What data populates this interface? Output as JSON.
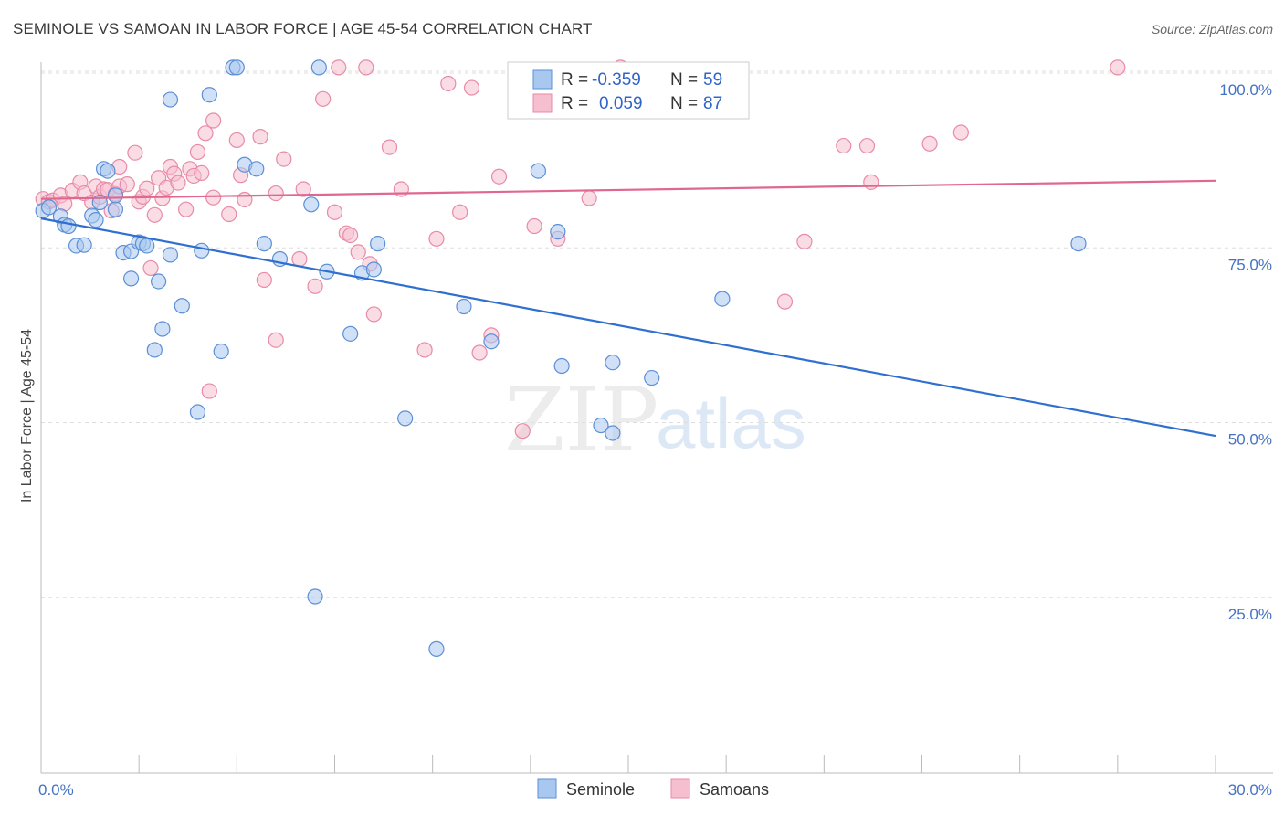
{
  "header": {
    "title": "SEMINOLE VS SAMOAN IN LABOR FORCE | AGE 45-54 CORRELATION CHART",
    "source": "Source: ZipAtlas.com"
  },
  "watermark": {
    "zip": "ZIP",
    "atlas": "atlas"
  },
  "legend": {
    "r_label": "R =",
    "n_label": "N =",
    "rows": [
      {
        "series": "Seminole",
        "r": "-0.359",
        "n": "59"
      },
      {
        "series": "Samoans",
        "r": "0.059",
        "n": "87"
      }
    ]
  },
  "colors": {
    "seminole_fill": "#a9c8f0",
    "seminole_stroke": "#5b8fd6",
    "seminole_line": "#2f6fcf",
    "samoans_fill": "#f6bfd0",
    "samoans_stroke": "#e88aa8",
    "samoans_line": "#e0678f",
    "grid": "#dddddd",
    "tick_text": "#4472c4"
  },
  "chart_data": {
    "type": "scatter",
    "title": "SEMINOLE VS SAMOAN IN LABOR FORCE | AGE 45-54 CORRELATION CHART",
    "ylabel": "In Labor Force | Age 45-54",
    "xlim": [
      0,
      30
    ],
    "ylim": [
      0,
      102
    ],
    "x_tick_labels": [
      {
        "value": 0,
        "label": "0.0%"
      },
      {
        "value": 30,
        "label": "30.0%"
      }
    ],
    "y_tick_labels": [
      {
        "value": 100,
        "label": "100.0%"
      },
      {
        "value": 75,
        "label": "75.0%"
      },
      {
        "value": 50,
        "label": "50.0%"
      },
      {
        "value": 25,
        "label": "25.0%"
      }
    ],
    "grid": true,
    "legend_position": "top-center",
    "series": [
      {
        "name": "Seminole",
        "r": -0.359,
        "n": 59,
        "trend": [
          [
            0,
            79.2
          ],
          [
            30,
            48.1
          ]
        ],
        "points": [
          [
            0.05,
            80.3
          ],
          [
            0.2,
            80.8
          ],
          [
            0.5,
            79.5
          ],
          [
            0.6,
            78.3
          ],
          [
            0.7,
            78.1
          ],
          [
            0.9,
            75.3
          ],
          [
            1.1,
            75.4
          ],
          [
            1.3,
            79.6
          ],
          [
            1.4,
            79.0
          ],
          [
            1.5,
            81.5
          ],
          [
            1.6,
            86.3
          ],
          [
            1.7,
            86.0
          ],
          [
            1.9,
            80.5
          ],
          [
            1.9,
            82.5
          ],
          [
            2.1,
            74.3
          ],
          [
            2.3,
            74.5
          ],
          [
            2.3,
            70.6
          ],
          [
            2.5,
            75.8
          ],
          [
            2.6,
            75.6
          ],
          [
            2.7,
            75.3
          ],
          [
            2.9,
            60.4
          ],
          [
            3.0,
            70.2
          ],
          [
            3.1,
            63.4
          ],
          [
            3.3,
            74.0
          ],
          [
            3.3,
            96.2
          ],
          [
            3.6,
            66.7
          ],
          [
            4.0,
            51.5
          ],
          [
            4.1,
            74.6
          ],
          [
            4.3,
            96.9
          ],
          [
            4.6,
            60.2
          ],
          [
            4.9,
            100.8
          ],
          [
            5.0,
            100.8
          ],
          [
            5.2,
            86.9
          ],
          [
            5.5,
            86.3
          ],
          [
            5.7,
            75.6
          ],
          [
            6.1,
            73.4
          ],
          [
            6.9,
            81.2
          ],
          [
            7.0,
            25.1
          ],
          [
            7.1,
            100.8
          ],
          [
            7.3,
            71.6
          ],
          [
            7.9,
            62.7
          ],
          [
            8.2,
            71.4
          ],
          [
            8.5,
            71.9
          ],
          [
            8.6,
            75.6
          ],
          [
            9.3,
            50.6
          ],
          [
            10.1,
            17.6
          ],
          [
            10.8,
            66.6
          ],
          [
            11.5,
            61.6
          ],
          [
            12.7,
            86.0
          ],
          [
            13.2,
            77.3
          ],
          [
            13.3,
            58.1
          ],
          [
            14.3,
            49.6
          ],
          [
            14.6,
            48.5
          ],
          [
            14.6,
            58.6
          ],
          [
            15.6,
            56.4
          ],
          [
            17.4,
            67.7
          ],
          [
            26.5,
            75.6
          ]
        ]
      },
      {
        "name": "Samoans",
        "r": 0.059,
        "n": 87,
        "trend": [
          [
            0,
            82.0
          ],
          [
            30,
            84.6
          ]
        ],
        "points": [
          [
            0.05,
            82.0
          ],
          [
            0.2,
            81.6
          ],
          [
            0.3,
            81.8
          ],
          [
            0.5,
            82.5
          ],
          [
            0.6,
            81.3
          ],
          [
            0.8,
            83.2
          ],
          [
            1.0,
            84.4
          ],
          [
            1.1,
            82.8
          ],
          [
            1.3,
            81.5
          ],
          [
            1.4,
            83.8
          ],
          [
            1.5,
            82.3
          ],
          [
            1.6,
            83.4
          ],
          [
            1.7,
            83.3
          ],
          [
            1.8,
            80.3
          ],
          [
            1.9,
            82.7
          ],
          [
            2.0,
            83.8
          ],
          [
            2.0,
            86.6
          ],
          [
            2.2,
            84.1
          ],
          [
            2.4,
            88.6
          ],
          [
            2.5,
            81.6
          ],
          [
            2.6,
            82.3
          ],
          [
            2.7,
            83.5
          ],
          [
            2.8,
            72.1
          ],
          [
            2.9,
            79.7
          ],
          [
            3.0,
            85.0
          ],
          [
            3.1,
            82.1
          ],
          [
            3.2,
            83.6
          ],
          [
            3.3,
            86.6
          ],
          [
            3.4,
            85.6
          ],
          [
            3.5,
            84.3
          ],
          [
            3.7,
            80.5
          ],
          [
            3.8,
            86.3
          ],
          [
            3.9,
            85.3
          ],
          [
            4.0,
            88.7
          ],
          [
            4.1,
            85.7
          ],
          [
            4.2,
            91.4
          ],
          [
            4.3,
            54.5
          ],
          [
            4.4,
            82.2
          ],
          [
            4.4,
            93.2
          ],
          [
            4.8,
            79.8
          ],
          [
            5.0,
            90.4
          ],
          [
            5.1,
            85.4
          ],
          [
            5.2,
            81.9
          ],
          [
            5.6,
            90.9
          ],
          [
            5.7,
            70.4
          ],
          [
            6.0,
            82.8
          ],
          [
            6.0,
            61.8
          ],
          [
            6.2,
            87.7
          ],
          [
            6.6,
            73.4
          ],
          [
            6.7,
            83.4
          ],
          [
            7.0,
            69.5
          ],
          [
            7.2,
            96.3
          ],
          [
            7.5,
            80.1
          ],
          [
            7.6,
            100.8
          ],
          [
            7.8,
            77.1
          ],
          [
            7.9,
            76.8
          ],
          [
            8.1,
            74.4
          ],
          [
            8.3,
            100.8
          ],
          [
            8.4,
            72.7
          ],
          [
            8.5,
            65.5
          ],
          [
            8.9,
            89.4
          ],
          [
            9.2,
            83.4
          ],
          [
            9.8,
            60.4
          ],
          [
            10.1,
            76.3
          ],
          [
            10.4,
            98.5
          ],
          [
            10.7,
            80.1
          ],
          [
            11.0,
            97.9
          ],
          [
            11.2,
            60.0
          ],
          [
            11.5,
            62.5
          ],
          [
            11.7,
            85.2
          ],
          [
            12.3,
            48.8
          ],
          [
            12.6,
            78.1
          ],
          [
            13.2,
            76.3
          ],
          [
            14.0,
            82.1
          ],
          [
            14.8,
            100.8
          ],
          [
            19.0,
            67.3
          ],
          [
            19.5,
            75.9
          ],
          [
            20.5,
            89.6
          ],
          [
            21.1,
            89.6
          ],
          [
            21.2,
            84.4
          ],
          [
            22.7,
            89.9
          ],
          [
            23.5,
            91.5
          ],
          [
            27.5,
            100.8
          ]
        ]
      }
    ]
  }
}
